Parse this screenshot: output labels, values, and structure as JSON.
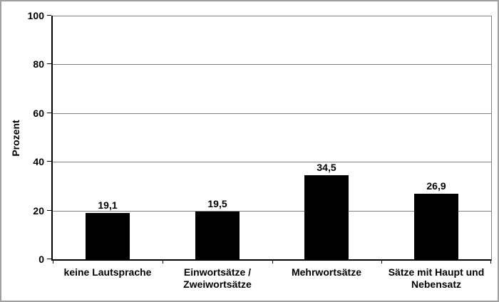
{
  "chart_data": {
    "type": "bar",
    "title": "",
    "ylabel": "Prozent",
    "xlabel": "",
    "categories": [
      "keine Lautsprache",
      "Einwortsätze / Zweiwortsätze",
      "Mehrwortsätze",
      "Sätze mit Haupt und Nebensatz"
    ],
    "values": [
      19.1,
      19.5,
      34.5,
      26.9
    ],
    "value_labels": [
      "19,1",
      "19,5",
      "34,5",
      "26,9"
    ],
    "ylim": [
      0,
      100
    ],
    "yticks": [
      0,
      20,
      40,
      60,
      80,
      100
    ],
    "ytick_labels": [
      "0",
      "20",
      "40",
      "60",
      "80",
      "100"
    ],
    "grid": true,
    "legend": false,
    "bar_color": "#000000",
    "gridline_color": "#808080",
    "axis_color": "#000000",
    "plot_right_border_color": "#808080",
    "outer_border_color": "#a0a0a0",
    "background_color": "#ffffff",
    "text_color": "#000000"
  }
}
